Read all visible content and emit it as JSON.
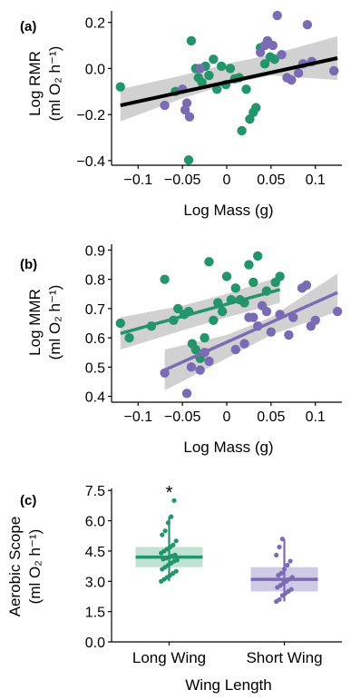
{
  "colors": {
    "long_wing": "#24946a",
    "short_wing": "#7a6cb4",
    "fit_line": "#000000",
    "ci_band": "#c9c9c9",
    "long_box": "#bfe2d2",
    "short_box": "#cfcae6"
  },
  "chart_data": [
    {
      "panel": "(a)",
      "type": "scatter",
      "xlabel": "Log Mass (g)",
      "ylabel_line1": "Log RMR",
      "ylabel_line2": "(ml O₂ h⁻¹)",
      "xlim": [
        -0.13,
        0.13
      ],
      "ylim": [
        -0.42,
        0.25
      ],
      "xticks": [
        -0.1,
        -0.05,
        0,
        0.05,
        0.1
      ],
      "xtick_labels": [
        "−0.1",
        "−0.05",
        "0",
        "0.05",
        "0.1"
      ],
      "yticks": [
        0.2,
        0.0,
        -0.2,
        -0.4
      ],
      "ytick_labels": [
        "0.2",
        "0.0",
        "−0.2",
        "−0.4"
      ],
      "fit": {
        "color": "black",
        "x": [
          -0.12,
          0.125
        ],
        "y": [
          -0.16,
          0.045
        ]
      },
      "ci_band": {
        "x": [
          -0.12,
          -0.05,
          0.0,
          0.05,
          0.125
        ],
        "lower": [
          -0.23,
          -0.13,
          -0.07,
          -0.03,
          -0.05
        ],
        "upper": [
          -0.09,
          -0.03,
          0.02,
          0.06,
          0.14
        ]
      },
      "series": [
        {
          "name": "Long Wing",
          "points": [
            [
              -0.12,
              -0.08
            ],
            [
              -0.043,
              -0.397
            ],
            [
              -0.04,
              0.12
            ],
            [
              -0.035,
              0.0
            ],
            [
              -0.032,
              -0.04
            ],
            [
              -0.028,
              -0.06
            ],
            [
              -0.024,
              0.01
            ],
            [
              -0.02,
              -0.03
            ],
            [
              -0.015,
              0.04
            ],
            [
              -0.011,
              -0.09
            ],
            [
              -0.006,
              0.01
            ],
            [
              -0.001,
              -0.07
            ],
            [
              0.004,
              0.0
            ],
            [
              0.009,
              -0.045
            ],
            [
              0.014,
              -0.04
            ],
            [
              0.017,
              -0.27
            ],
            [
              0.022,
              -0.09
            ],
            [
              0.026,
              -0.22
            ],
            [
              0.03,
              -0.19
            ],
            [
              0.033,
              -0.17
            ],
            [
              0.038,
              0.09
            ],
            [
              0.043,
              0.02
            ],
            [
              0.049,
              0.05
            ],
            [
              0.054,
              0.04
            ],
            [
              -0.058,
              -0.1
            ]
          ]
        },
        {
          "name": "Short Wing",
          "points": [
            [
              -0.07,
              -0.16
            ],
            [
              -0.05,
              -0.09
            ],
            [
              -0.045,
              -0.15
            ],
            [
              -0.042,
              -0.21
            ],
            [
              -0.047,
              -0.18
            ],
            [
              -0.03,
              0.0
            ],
            [
              0.038,
              0.07
            ],
            [
              0.046,
              0.12
            ],
            [
              0.052,
              0.1
            ],
            [
              0.057,
              0.23
            ],
            [
              0.062,
              0.06
            ],
            [
              0.068,
              -0.04
            ],
            [
              0.073,
              -0.05
            ],
            [
              0.081,
              -0.02
            ],
            [
              0.086,
              0.02
            ],
            [
              0.091,
              0.19
            ],
            [
              0.096,
              0.03
            ],
            [
              0.121,
              -0.01
            ],
            [
              0.043,
              0.1
            ]
          ]
        }
      ]
    },
    {
      "panel": "(b)",
      "type": "scatter",
      "xlabel": "Log Mass (g)",
      "ylabel_line1": "Log MMR",
      "ylabel_line2": "(ml O₂ h⁻¹)",
      "xlim": [
        -0.13,
        0.13
      ],
      "ylim": [
        0.38,
        0.92
      ],
      "xticks": [
        -0.1,
        -0.05,
        0,
        0.05,
        0.1
      ],
      "xtick_labels": [
        "−0.1",
        "−0.05",
        "0",
        "0.05",
        "0.1"
      ],
      "yticks": [
        0.9,
        0.8,
        0.7,
        0.6,
        0.5,
        0.4
      ],
      "ytick_labels": [
        "0.9",
        "0.8",
        "0.7",
        "0.6",
        "0.5",
        "0.4"
      ],
      "fits": [
        {
          "series": "Long Wing",
          "x": [
            -0.12,
            0.06
          ],
          "y": [
            0.615,
            0.765
          ],
          "ci_x": [
            -0.12,
            -0.05,
            0.0,
            0.06
          ],
          "ci_lower": [
            0.56,
            0.625,
            0.67,
            0.72
          ],
          "ci_upper": [
            0.67,
            0.71,
            0.75,
            0.81
          ]
        },
        {
          "series": "Short Wing",
          "x": [
            -0.07,
            0.125
          ],
          "y": [
            0.49,
            0.755
          ],
          "ci_x": [
            -0.07,
            0.0,
            0.05,
            0.125
          ],
          "ci_lower": [
            0.42,
            0.53,
            0.61,
            0.69
          ],
          "ci_upper": [
            0.56,
            0.61,
            0.67,
            0.82
          ]
        }
      ],
      "series": [
        {
          "name": "Long Wing",
          "points": [
            [
              -0.12,
              0.65
            ],
            [
              -0.11,
              0.6
            ],
            [
              -0.085,
              0.64
            ],
            [
              -0.07,
              0.8
            ],
            [
              -0.06,
              0.66
            ],
            [
              -0.055,
              0.7
            ],
            [
              -0.048,
              0.68
            ],
            [
              -0.043,
              0.69
            ],
            [
              -0.039,
              0.58
            ],
            [
              -0.035,
              0.56
            ],
            [
              -0.03,
              0.53
            ],
            [
              -0.025,
              0.6
            ],
            [
              -0.02,
              0.86
            ],
            [
              -0.015,
              0.66
            ],
            [
              -0.01,
              0.72
            ],
            [
              -0.005,
              0.69
            ],
            [
              0.0,
              0.81
            ],
            [
              0.005,
              0.73
            ],
            [
              0.01,
              0.77
            ],
            [
              0.015,
              0.73
            ],
            [
              0.02,
              0.72
            ],
            [
              0.025,
              0.85
            ],
            [
              0.03,
              0.79
            ],
            [
              0.035,
              0.88
            ],
            [
              0.045,
              0.76
            ],
            [
              0.055,
              0.79
            ],
            [
              0.06,
              0.81
            ]
          ]
        },
        {
          "name": "Short Wing",
          "points": [
            [
              -0.07,
              0.48
            ],
            [
              -0.045,
              0.41
            ],
            [
              -0.04,
              0.5
            ],
            [
              -0.03,
              0.49
            ],
            [
              -0.025,
              0.55
            ],
            [
              -0.02,
              0.52
            ],
            [
              0.01,
              0.56
            ],
            [
              0.02,
              0.58
            ],
            [
              0.025,
              0.67
            ],
            [
              0.03,
              0.67
            ],
            [
              0.035,
              0.64
            ],
            [
              0.04,
              0.71
            ],
            [
              0.045,
              0.69
            ],
            [
              0.05,
              0.62
            ],
            [
              0.06,
              0.68
            ],
            [
              0.07,
              0.61
            ],
            [
              0.075,
              0.67
            ],
            [
              0.085,
              0.77
            ],
            [
              0.09,
              0.78
            ],
            [
              0.095,
              0.64
            ],
            [
              0.1,
              0.66
            ],
            [
              0.125,
              0.69
            ]
          ]
        }
      ]
    },
    {
      "panel": "(c)",
      "type": "box",
      "xlabel": "Wing Length",
      "ylabel_line1": "Aerobic Scope",
      "ylabel_line2": "(ml O₂ h⁻¹)",
      "categories": [
        "Long Wing",
        "Short Wing"
      ],
      "ylim": [
        0.0,
        7.6
      ],
      "yticks": [
        0.0,
        1.5,
        3.0,
        4.5,
        6.0,
        7.5
      ],
      "ytick_labels": [
        "0.0",
        "1.5",
        "3.0",
        "4.5",
        "6.0",
        "7.5"
      ],
      "groups": [
        {
          "name": "Long Wing",
          "median": 4.2,
          "q1": 3.7,
          "q3": 4.7,
          "lower": 3.0,
          "upper": 6.2,
          "annotation": "*",
          "points": [
            3.0,
            3.1,
            3.2,
            3.3,
            3.4,
            3.5,
            3.6,
            3.7,
            3.8,
            3.9,
            4.0,
            4.05,
            4.1,
            4.15,
            4.2,
            4.25,
            4.3,
            4.4,
            4.5,
            4.6,
            4.7,
            4.8,
            5.0,
            5.3,
            5.5,
            5.9,
            6.2,
            7.0
          ]
        },
        {
          "name": "Short Wing",
          "median": 3.1,
          "q1": 2.5,
          "q3": 3.7,
          "lower": 2.0,
          "upper": 5.1,
          "annotation": "",
          "points": [
            2.0,
            2.1,
            2.3,
            2.4,
            2.5,
            2.6,
            2.7,
            2.8,
            2.9,
            3.0,
            3.1,
            3.2,
            3.3,
            3.4,
            3.6,
            3.8,
            4.0,
            4.3,
            4.7,
            5.1
          ]
        }
      ]
    }
  ]
}
